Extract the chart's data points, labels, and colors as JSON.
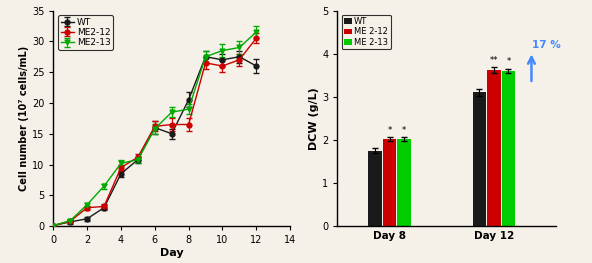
{
  "growth_days": [
    0,
    1,
    2,
    3,
    4,
    5,
    6,
    7,
    8,
    9,
    10,
    11,
    12
  ],
  "wt_cells": [
    0.1,
    0.7,
    1.2,
    3.0,
    8.5,
    10.8,
    16.0,
    15.0,
    20.5,
    27.5,
    27.0,
    27.5,
    26.0
  ],
  "me212_cells": [
    0.1,
    0.8,
    3.0,
    3.2,
    9.5,
    11.2,
    16.2,
    16.5,
    16.5,
    26.5,
    26.0,
    27.0,
    30.5
  ],
  "me213_cells": [
    0.1,
    0.9,
    3.5,
    6.5,
    10.2,
    10.8,
    15.8,
    18.5,
    19.0,
    27.5,
    28.5,
    29.0,
    31.5
  ],
  "wt_err": [
    0.1,
    0.3,
    0.3,
    0.4,
    0.5,
    0.5,
    1.0,
    0.8,
    1.2,
    1.0,
    1.0,
    1.0,
    1.2
  ],
  "me212_err": [
    0.1,
    0.2,
    0.3,
    0.4,
    0.5,
    0.5,
    0.8,
    1.0,
    1.0,
    1.0,
    1.0,
    1.0,
    0.8
  ],
  "me213_err": [
    0.1,
    0.2,
    0.3,
    0.4,
    0.5,
    0.5,
    0.8,
    0.8,
    0.8,
    1.0,
    1.0,
    1.0,
    1.0
  ],
  "wt_color": "#1a1a1a",
  "me212_color": "#cc0000",
  "me213_color": "#00aa00",
  "dcw_wt": [
    1.75,
    3.1
  ],
  "dcw_me212": [
    2.02,
    3.62
  ],
  "dcw_me213": [
    2.02,
    3.6
  ],
  "dcw_wt_err": [
    0.06,
    0.08
  ],
  "dcw_me212_err": [
    0.04,
    0.06
  ],
  "dcw_me213_err": [
    0.04,
    0.05
  ],
  "bar_wt_color": "#1a1a1a",
  "bar_me212_color": "#cc0000",
  "bar_me213_color": "#00cc00",
  "arrow_color": "#4488ff",
  "percent_text": "17 %",
  "ylabel_left": "Cell number (10⁷ cells/mL)",
  "xlabel_left": "Day",
  "ylabel_right": "DCW (g/L)",
  "ylim_left": [
    0,
    35
  ],
  "xlim_left": [
    0,
    14
  ],
  "yticks_left": [
    0,
    5,
    10,
    15,
    20,
    25,
    30,
    35
  ],
  "ylim_right": [
    0,
    5
  ],
  "yticks_right": [
    0,
    1,
    2,
    3,
    4,
    5
  ],
  "bg_color": "#f5f0e8"
}
